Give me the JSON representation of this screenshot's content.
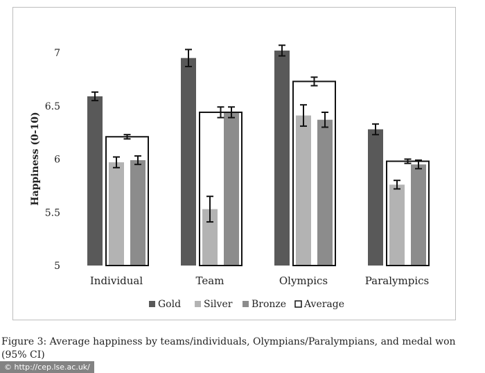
{
  "chart_data": {
    "type": "bar",
    "title": "",
    "ylabel": "Happiness (0-10)",
    "xlabel": "",
    "ylim": [
      5,
      7
    ],
    "yticks": [
      "5",
      "5.5",
      "6",
      "6.5",
      "7"
    ],
    "categories": [
      "Individual",
      "Team",
      "Olympics",
      "Paralympics"
    ],
    "series": [
      {
        "name": "Gold",
        "color": "#595959",
        "values": [
          6.59,
          6.95,
          7.02,
          6.28
        ],
        "err": [
          0.04,
          0.08,
          0.05,
          0.05
        ]
      },
      {
        "name": "Silver",
        "color": "#b3b3b3",
        "values": [
          5.97,
          5.53,
          6.41,
          5.76
        ],
        "err": [
          0.05,
          0.12,
          0.1,
          0.04
        ]
      },
      {
        "name": "Bronze",
        "color": "#8c8c8c",
        "values": [
          5.99,
          6.44,
          6.37,
          5.95
        ],
        "err": [
          0.04,
          0.05,
          0.07,
          0.04
        ]
      },
      {
        "name": "Average",
        "color": "#ffffff",
        "values": [
          6.21,
          6.44,
          6.73,
          5.98
        ],
        "err": [
          0.02,
          0.05,
          0.04,
          0.02
        ]
      }
    ],
    "legend_position": "bottom",
    "grid": false
  },
  "caption": "Figure 3: Average happiness by teams/individuals, Olympians/Paralympians, and medal won (95% CI)",
  "watermark": "© http://cep.lse.ac.uk/"
}
